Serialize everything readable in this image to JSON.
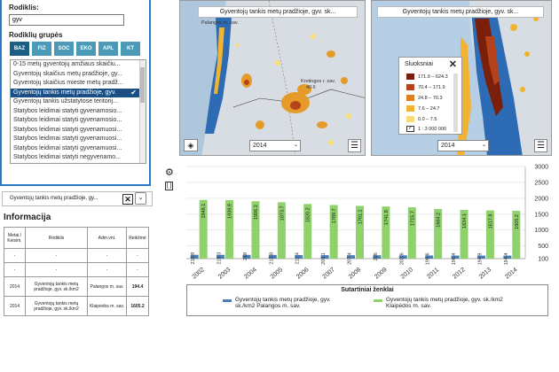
{
  "selector": {
    "rodiklis_label": "Rodiklis:",
    "search_value": "gyv",
    "groups_label": "Rodiklių grupės",
    "groups": [
      "BAZ",
      "FIZ",
      "SOC",
      "EKO",
      "APL",
      "KT"
    ],
    "items": [
      "0-15 metų gyventojų amžiaus skaičiu...",
      "Gyventojų skaičius metų pradžioje, gy...",
      "Gyventojų skaičius mieste metų pradž...",
      "Gyventojų tankis metų pradžioje, gyv.",
      "Gyventojų tankis užstatytose teritorij...",
      "Statybos leidimai statyti gyvenamosio...",
      "Statybos leidimai statyti gyvenamosio...",
      "Statybos leidimai statyti gyvenamuosi...",
      "Statybos leidimai statyti gyvenamuosi...",
      "Statybos leidimai statyti gyvenamuosi...",
      "Statybos leidimai statyti negyvenamo..."
    ],
    "selected_row": "Gyventojų tankis metų pradžioje, gy..."
  },
  "info": {
    "title": "Informacija",
    "headers": [
      "Metai / Keisim.",
      "Rodiklis",
      "Adm.vnt.",
      "Reikšmė"
    ],
    "rows": [
      [
        "-",
        "-",
        "-",
        "-"
      ],
      [
        "-",
        "-",
        "-",
        "-"
      ],
      [
        "2014",
        "Gyventojų tankis metų pradžioje, gyv. sk./km2",
        "Palangos m. sav.",
        "194.4"
      ],
      [
        "2014",
        "Gyventojų tankis metų pradžioje, gyv. sk./km2",
        "Klaipėdos m. sav.",
        "1605.2"
      ]
    ]
  },
  "map1": {
    "title": "Gyventojų tankis metų pradžioje, gyv. sk...",
    "year": "2014",
    "labels": [
      "Palangos m. sav.",
      "Kretingos r. sav.",
      "40.6"
    ]
  },
  "map2": {
    "title": "Gyventojų tankis metų pradžioje, gyv. sk...",
    "year": "2014"
  },
  "map_legend": {
    "title": "Sluoksniai",
    "classes": [
      {
        "label": "171.9 – 624.3",
        "color": "#7a1f0a"
      },
      {
        "label": "70.4 – 171.9",
        "color": "#b5421a"
      },
      {
        "label": "24.8 – 70.3",
        "color": "#e07d1f"
      },
      {
        "label": "7.6 – 24.7",
        "color": "#f1b330"
      },
      {
        "label": "0.0 – 7.5",
        "color": "#f9dd72"
      },
      {
        "label": "1 : 3 000 000",
        "color": "#ffffff"
      }
    ]
  },
  "chart_data": {
    "type": "bar",
    "categories": [
      "2002",
      "2003",
      "2004",
      "2005",
      "2006",
      "2007",
      "2008",
      "2009",
      "2010",
      "2011",
      "2012",
      "2013",
      "2014"
    ],
    "series": [
      {
        "name": "Gyventojų tankis metų pradžioje, gyv. sk./km2 Palangos m. sav.",
        "color": "#4a7fb5",
        "values": [
          219.9,
          219.3,
          218,
          215.8,
          211.4,
          209.1,
          207.4,
          206,
          202.6,
          199.6,
          196.4,
          194.9,
          194.4
        ]
      },
      {
        "name": "Gyventojų tankis metų pradžioje, gyv. sk./km2 Klaipėdos m. sav.",
        "color": "#8fd16a",
        "values": [
          1948.1,
          1939.9,
          1906.2,
          1873.7,
          1820.2,
          1789.7,
          1761.1,
          1741.8,
          1715.7,
          1664.2,
          1634.1,
          1617.8,
          1605.2
        ]
      }
    ],
    "ylim": [
      0,
      3000
    ],
    "yticks": [
      100,
      500,
      1000,
      1500,
      2000,
      2500,
      3000
    ]
  },
  "chart_legend_title": "Sutartiniai ženklai"
}
